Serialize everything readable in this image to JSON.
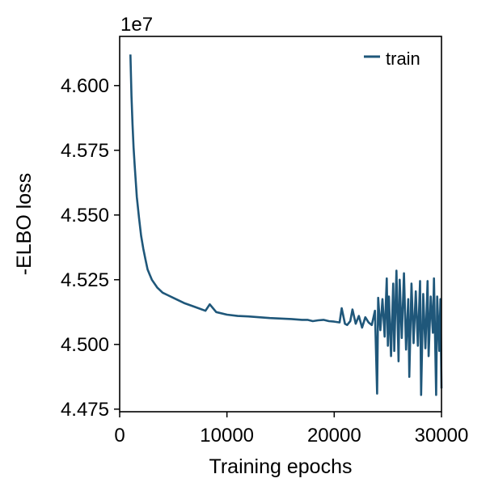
{
  "chart_data": {
    "type": "line",
    "title": "",
    "xlabel": "Training epochs",
    "ylabel": "-ELBO loss",
    "y_offset_label": "1e7",
    "xlim": [
      0,
      30000
    ],
    "ylim": [
      4.474,
      4.619
    ],
    "x_ticks": [
      0,
      10000,
      20000,
      30000
    ],
    "x_tick_labels": [
      "0",
      "10000",
      "20000",
      "30000"
    ],
    "y_ticks": [
      4.475,
      4.5,
      4.525,
      4.55,
      4.575,
      4.6
    ],
    "y_tick_labels": [
      "4.475",
      "4.500",
      "4.525",
      "4.550",
      "4.575",
      "4.600"
    ],
    "grid": false,
    "legend": {
      "position": "top-right",
      "entries": [
        "train"
      ]
    },
    "series_color": "#1f577a",
    "series": [
      {
        "name": "train",
        "x": [
          1000,
          1100,
          1200,
          1300,
          1400,
          1500,
          1600,
          1800,
          2000,
          2200,
          2400,
          2600,
          2800,
          3000,
          3500,
          4000,
          4500,
          5000,
          6000,
          7000,
          8000,
          8400,
          9000,
          10000,
          11000,
          12000,
          13000,
          14000,
          15000,
          16000,
          17000,
          17500,
          18000,
          18500,
          19000,
          19500,
          20000,
          20500,
          20700,
          21000,
          21200,
          21500,
          21700,
          22000,
          22300,
          22600,
          22900,
          23200,
          23500,
          23800,
          24000,
          24100,
          24300,
          24500,
          24700,
          24900,
          25000,
          25100,
          25300,
          25500,
          25600,
          25800,
          26000,
          26100,
          26300,
          26500,
          26700,
          26900,
          27000,
          27200,
          27400,
          27600,
          27800,
          28000,
          28100,
          28300,
          28500,
          28700,
          28800,
          29000,
          29200,
          29300,
          29500,
          29600,
          29800,
          29900,
          30000
        ],
        "values": [
          4.612,
          4.596,
          4.585,
          4.576,
          4.569,
          4.563,
          4.557,
          4.549,
          4.542,
          4.537,
          4.533,
          4.529,
          4.527,
          4.525,
          4.522,
          4.52,
          4.519,
          4.518,
          4.516,
          4.5145,
          4.513,
          4.5155,
          4.5125,
          4.5115,
          4.511,
          4.5108,
          4.5105,
          4.5102,
          4.51,
          4.5098,
          4.5095,
          4.5095,
          4.509,
          4.5093,
          4.5095,
          4.509,
          4.5088,
          4.5085,
          4.514,
          4.508,
          4.5075,
          4.509,
          4.5135,
          4.508,
          4.511,
          4.5065,
          4.5105,
          4.5085,
          4.5075,
          4.513,
          4.481,
          4.518,
          4.5055,
          4.5175,
          4.503,
          4.5255,
          4.4995,
          4.5185,
          4.4955,
          4.5235,
          4.4975,
          4.5285,
          4.4935,
          4.525,
          4.5025,
          4.5275,
          4.498,
          4.5175,
          4.4875,
          4.5235,
          4.5005,
          4.5205,
          4.4995,
          4.5245,
          4.4805,
          4.5195,
          4.4985,
          4.5245,
          4.4955,
          4.5185,
          4.5045,
          4.5255,
          4.4805,
          4.5185,
          4.4975,
          4.5175,
          4.483
        ]
      }
    ]
  }
}
